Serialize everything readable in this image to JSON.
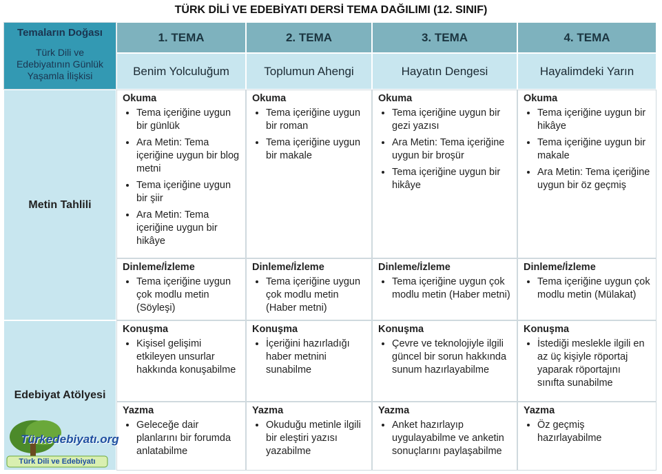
{
  "title": "TÜRK DİLİ VE EDEBİYATI DERSİ TEMA DAĞILIMI (12. SINIF)",
  "corner": {
    "title": "Temaların Doğası",
    "subtitle": "Türk Dili ve Edebiyatının Günlük Yaşamla İlişkisi"
  },
  "themes": [
    {
      "number": "1. TEMA",
      "name": "Benim Yolculuğum"
    },
    {
      "number": "2. TEMA",
      "name": "Toplumun Ahengi"
    },
    {
      "number": "3. TEMA",
      "name": "Hayatın Dengesi"
    },
    {
      "number": "4. TEMA",
      "name": "Hayalimdeki Yarın"
    }
  ],
  "sections": [
    {
      "label": "Metin Tahlili",
      "rows": [
        {
          "heading": "Okuma",
          "cells": [
            [
              "Tema içeriğine uygun bir günlük",
              "Ara Metin: Tema içeriğine uygun bir blog metni",
              "Tema içeriğine uygun bir şiir",
              "Ara Metin: Tema içeriğine uygun bir hikâye"
            ],
            [
              "Tema içeriğine uygun bir roman",
              "Tema içeriğine uygun bir makale"
            ],
            [
              "Tema içeriğine uygun bir gezi yazısı",
              "Ara Metin: Tema içeriğine uygun bir broşür",
              "Tema içeriğine uygun bir hikâye"
            ],
            [
              "Tema içeriğine uygun bir hikâye",
              "Tema içeriğine uygun bir makale",
              "Ara Metin: Tema içeriğine uygun bir öz geçmiş"
            ]
          ]
        },
        {
          "heading": "Dinleme/İzleme",
          "cells": [
            [
              "Tema içeriğine uygun çok modlu metin (Söyleşi)"
            ],
            [
              "Tema içeriğine uygun çok modlu metin (Haber metni)"
            ],
            [
              "Tema içeriğine uygun çok modlu metin (Haber metni)"
            ],
            [
              "Tema içeriğine uygun çok modlu metin (Mülakat)"
            ]
          ]
        }
      ]
    },
    {
      "label": "Edebiyat Atölyesi",
      "rows": [
        {
          "heading": "Konuşma",
          "cells": [
            [
              "Kişisel gelişimi etkileyen unsurlar hakkında konuşabilme"
            ],
            [
              "İçeriğini hazırladığı haber metnini sunabilme"
            ],
            [
              "Çevre ve teknolojiyle ilgili güncel bir sorun hakkında sunum hazırlayabilme"
            ],
            [
              "İstediği meslekle ilgili en az üç kişiyle röportaj yaparak röportajını sınıfta sunabilme"
            ]
          ]
        },
        {
          "heading": "Yazma",
          "cells": [
            [
              "Geleceğe dair planlarını bir forumda anlatabilme"
            ],
            [
              "Okuduğu metinle ilgili bir eleştiri yazısı yazabilme"
            ],
            [
              "Anket hazırlayıp uygulayabilme ve anketin sonuçlarını paylaşabilme"
            ],
            [
              "Öz geçmiş hazırlayabilme"
            ]
          ]
        }
      ]
    }
  ],
  "logo": {
    "name": "Türkedebiyatı.org",
    "tagline": "Türk Dili ve Edebiyatı"
  }
}
